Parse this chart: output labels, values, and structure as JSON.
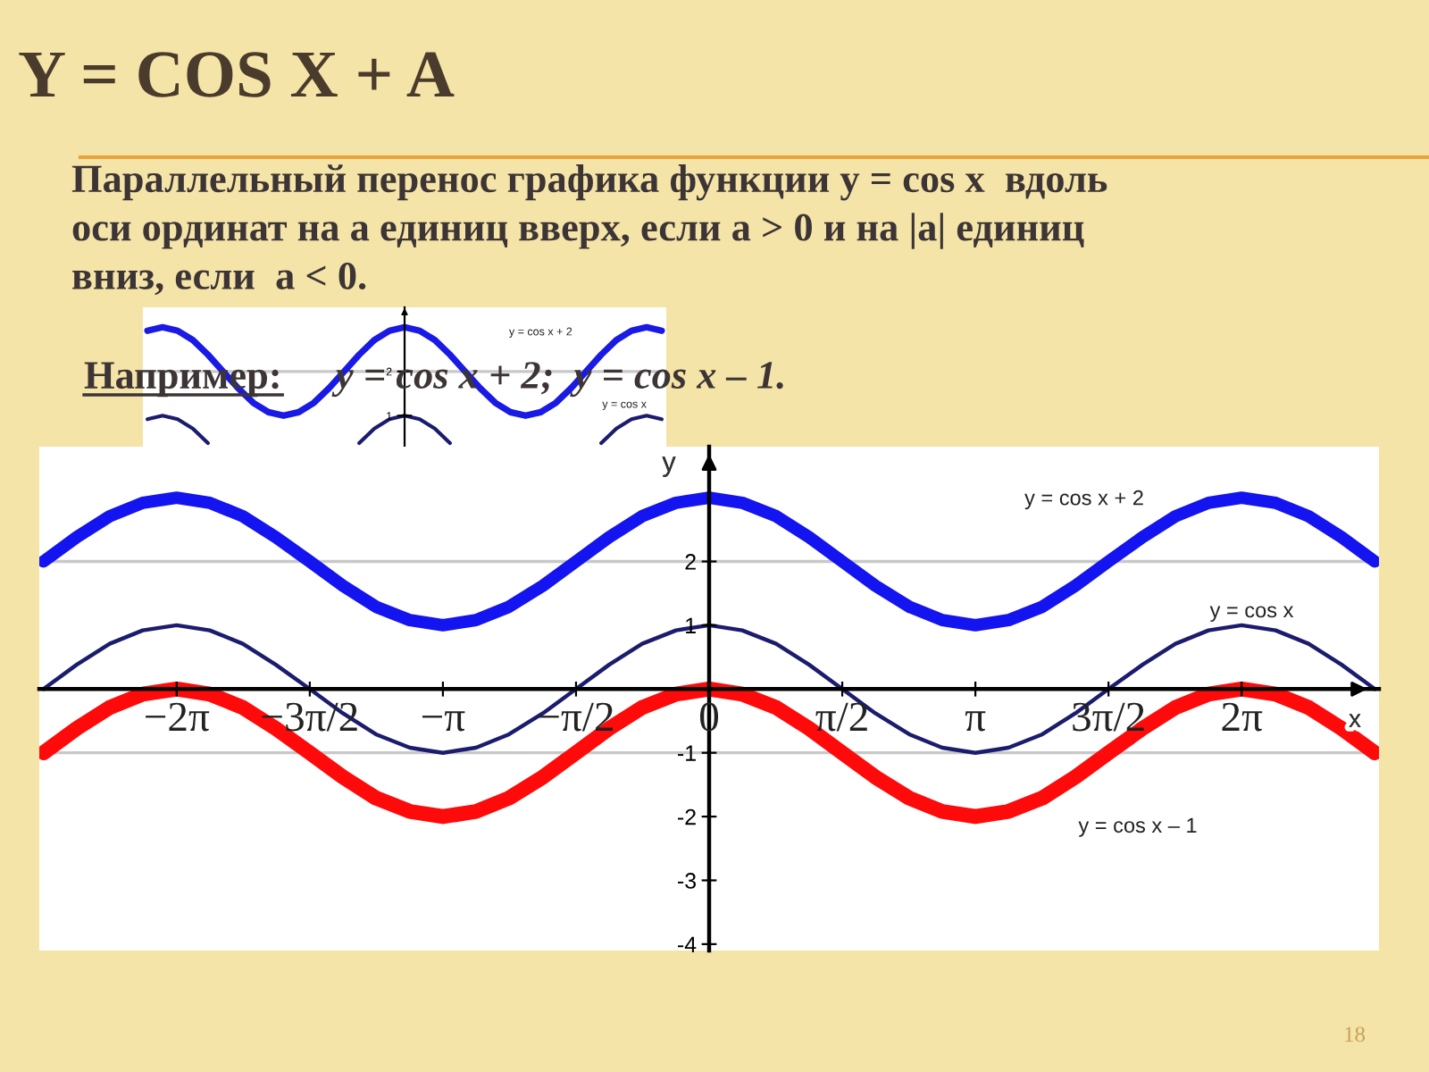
{
  "chart_data": [
    {
      "type": "line",
      "title": "Y = COS X + A",
      "annotations": [
        "Параллельный перенос графика функции y = cos x  вдоль\nоси ординат на a единиц вверх, если a > 0 и на |a| единиц\nвниз, если  a < 0.",
        "Например:",
        "y = cos x + 2;  y = cos x – 1."
      ],
      "categories": [
        null,
        null,
        null,
        null,
        null,
        null,
        null,
        null,
        null,
        null,
        null,
        null,
        null,
        null,
        null,
        null,
        null,
        null,
        null,
        null,
        null,
        null,
        null,
        null,
        null,
        null,
        null,
        null,
        null,
        null,
        null,
        null,
        null,
        null,
        null
      ],
      "series": [
        {
          "name": "y = cos x + 2",
          "color": "#1a1ae6",
          "values": [
            2.92,
            3,
            2.92,
            2.71,
            2.38,
            2,
            1.62,
            1.29,
            1.08,
            1,
            1.08,
            1.29,
            1.62,
            2,
            2.38,
            2.71,
            2.92,
            3,
            2.92,
            2.71,
            2.38,
            2,
            1.62,
            1.29,
            1.08,
            1,
            1.08,
            1.29,
            1.62,
            2,
            2.38,
            2.71,
            2.92,
            3,
            2.92
          ]
        },
        {
          "name": "y = cos x",
          "color": "#1c1c6e",
          "values": [
            0.92,
            1,
            0.92,
            0.71,
            0.38,
            null,
            null,
            null,
            null,
            null,
            null,
            null,
            null,
            null,
            0.38,
            0.71,
            0.92,
            1,
            0.92,
            0.71,
            0.38,
            null,
            null,
            null,
            null,
            null,
            null,
            null,
            null,
            null,
            0.38,
            0.71,
            0.92,
            1,
            0.92
          ]
        }
      ],
      "ylim": [
        0.3,
        3.45
      ],
      "yticks": [
        1,
        2
      ],
      "tick_labels": "y",
      "ref_lines": [
        {
          "axis": "y",
          "value": 2,
          "color": "#c8c8c8"
        }
      ]
    },
    {
      "type": "line",
      "xlabel": "x",
      "ylabel": "y",
      "annotations": [
        "18"
      ],
      "x": [
        -7.85,
        -7.46,
        -7.07,
        -6.68,
        -6.28,
        -5.89,
        -5.5,
        -5.11,
        -4.71,
        -4.32,
        -3.93,
        -3.53,
        -3.14,
        -2.75,
        -2.36,
        -1.96,
        -1.57,
        -1.18,
        -0.79,
        -0.39,
        0,
        0.39,
        0.79,
        1.18,
        1.57,
        1.96,
        2.36,
        2.75,
        3.14,
        3.53,
        3.93,
        4.32,
        4.71,
        5.11,
        5.5,
        5.89,
        6.28,
        6.68,
        7.07,
        7.46,
        7.85
      ],
      "series": [
        {
          "name": "y = cos x + 2",
          "color": "#1414f0",
          "values": [
            2,
            2.38,
            2.71,
            2.92,
            3,
            2.92,
            2.71,
            2.38,
            2,
            1.62,
            1.29,
            1.08,
            1,
            1.08,
            1.29,
            1.62,
            2,
            2.38,
            2.71,
            2.92,
            3,
            2.92,
            2.71,
            2.38,
            2,
            1.62,
            1.29,
            1.08,
            1,
            1.08,
            1.29,
            1.62,
            2,
            2.38,
            2.71,
            2.92,
            3,
            2.92,
            2.71,
            2.38,
            2
          ]
        },
        {
          "name": "y = cos x",
          "color": "#1c1c6e",
          "values": [
            0,
            0.38,
            0.71,
            0.92,
            1,
            0.92,
            0.71,
            0.38,
            0,
            -0.38,
            -0.71,
            -0.92,
            -1,
            -0.92,
            -0.71,
            -0.38,
            0,
            0.38,
            0.71,
            0.92,
            1,
            0.92,
            0.71,
            0.38,
            0,
            -0.38,
            -0.71,
            -0.92,
            -1,
            -0.92,
            -0.71,
            -0.38,
            0,
            0.38,
            0.71,
            0.92,
            1,
            0.92,
            0.71,
            0.38,
            0
          ]
        },
        {
          "name": "y = cos x – 1",
          "color": "#ff0a0a",
          "values": [
            -1,
            -0.62,
            -0.29,
            -0.08,
            0,
            -0.08,
            -0.29,
            -0.62,
            -1,
            -1.38,
            -1.71,
            -1.92,
            -2,
            -1.92,
            -1.71,
            -1.38,
            -1,
            -0.62,
            -0.29,
            -0.08,
            0,
            -0.08,
            -0.29,
            -0.62,
            -1,
            -1.38,
            -1.71,
            -1.92,
            -2,
            -1.92,
            -1.71,
            -1.38,
            -1,
            -0.62,
            -0.29,
            -0.08,
            0,
            -0.08,
            -0.29,
            -0.62,
            -1
          ]
        }
      ],
      "xlim": [
        -7.9,
        7.9
      ],
      "ylim": [
        -4.1,
        3.8
      ],
      "xticks": [
        {
          "value": -6.28,
          "label": "−2π"
        },
        {
          "value": -4.71,
          "label": "−3π/2"
        },
        {
          "value": -3.14,
          "label": "−π"
        },
        {
          "value": -1.57,
          "label": "−π/2"
        },
        0,
        {
          "value": 1.57,
          "label": "π/2"
        },
        {
          "value": 3.14,
          "label": "π"
        },
        {
          "value": 4.71,
          "label": "3π/2"
        },
        {
          "value": 6.28,
          "label": "2π"
        }
      ],
      "yticks": [
        -4,
        -3,
        -2,
        -1,
        1,
        2
      ],
      "ref_lines": [
        {
          "axis": "y",
          "value": 2,
          "color": "#c8c8c8"
        },
        {
          "axis": "y",
          "value": -1,
          "color": "#c8c8c8"
        }
      ]
    }
  ]
}
